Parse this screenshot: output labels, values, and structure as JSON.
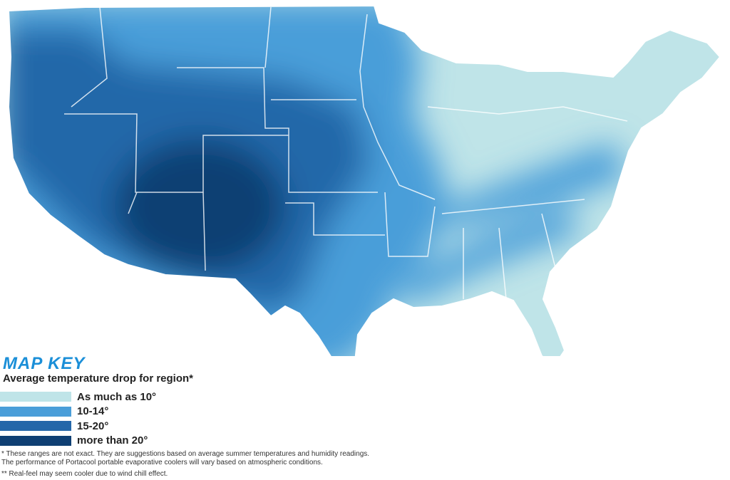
{
  "map_key": {
    "title": "MAP KEY",
    "subtitle": "Average temperature drop for region*",
    "items": [
      {
        "label": "As much as 10°",
        "color": "#bfe4e8"
      },
      {
        "label": "10-14°",
        "color": "#4a9ed9"
      },
      {
        "label": "15-20°",
        "color": "#2467a9"
      },
      {
        "label": "more than 20°",
        "color": "#0f3f73"
      }
    ]
  },
  "footnotes": [
    "* These ranges are not exact. They are suggestions based on average summer temperatures and humidity readings. The performance of Portacool portable evaporative coolers will vary based on atmospheric conditions.",
    "** Real-feel may seem cooler due to wind chill effect."
  ]
}
